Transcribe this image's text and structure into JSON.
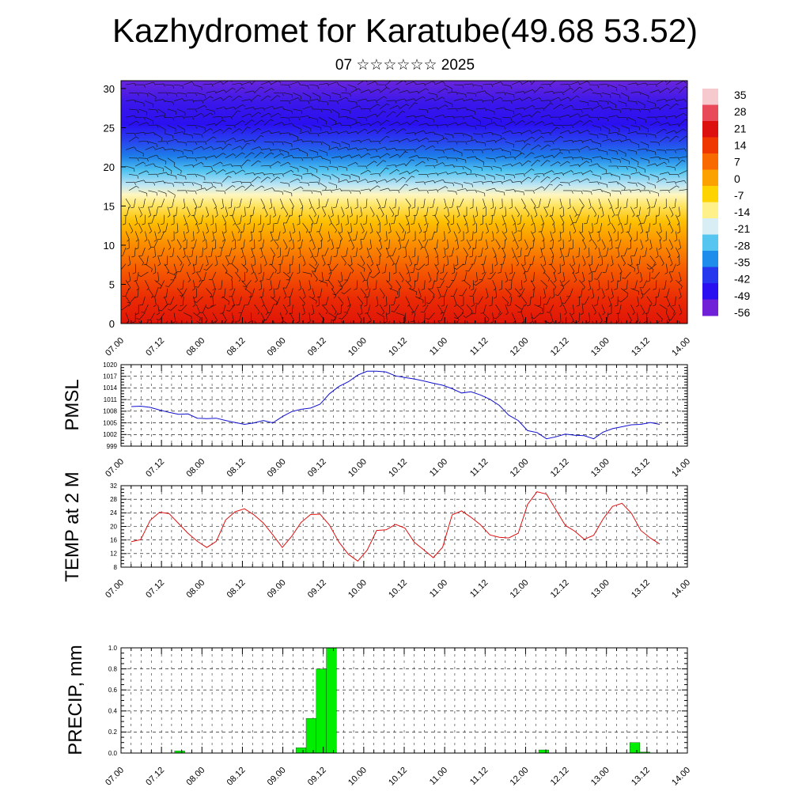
{
  "header": {
    "title": "Kazhydromet for Karatube(49.68 53.52)",
    "subtitle": "07 ☆☆☆☆☆☆ 2025"
  },
  "time_ticks": [
    "07.00",
    "07.12",
    "08.00",
    "08.12",
    "09.00",
    "09.12",
    "10.00",
    "10.12",
    "11.00",
    "11.12",
    "12.00",
    "12.12",
    "13.00",
    "13.12",
    "14.00"
  ],
  "colors": {
    "pmsl_line": "#1010d0",
    "temp_line": "#e01010",
    "precip_bar": "#00ee00",
    "grid": "#000000"
  },
  "chart_data": [
    {
      "type": "heatmap",
      "name": "temperature-wind-cross-section",
      "ylim": [
        0,
        31
      ],
      "yticks": [
        "0",
        "5",
        "10",
        "15",
        "20",
        "25",
        "30"
      ],
      "xlim": [
        0,
        14
      ],
      "colorbar_labels": [
        "35",
        "28",
        "21",
        "14",
        "7",
        "0",
        "-7",
        "-14",
        "-21",
        "-28",
        "-35",
        "-42",
        "-49",
        "-56"
      ],
      "colorbar_colors": [
        "#f6c9cf",
        "#e84a5a",
        "#dd1010",
        "#ee3800",
        "#f86a00",
        "#fba200",
        "#fdd400",
        "#fef18a",
        "#d8eef4",
        "#56c6f0",
        "#1e8cea",
        "#2638ee",
        "#2a10f0",
        "#7020d6"
      ],
      "wind_barbs": true
    },
    {
      "type": "line",
      "name": "pmsl",
      "ylabel": "PMSL",
      "ylim": [
        999,
        1020
      ],
      "yticks": [
        "999",
        "1002",
        "1005",
        "1008",
        "1011",
        "1014",
        "1017",
        "1020"
      ],
      "x_unit_per_tick": "12h",
      "x": [
        0,
        1,
        2,
        3,
        4,
        5,
        6,
        7,
        8,
        9,
        10,
        11,
        12,
        13,
        14,
        15,
        16,
        17,
        18,
        19,
        20,
        21,
        22,
        23,
        24,
        25,
        26,
        27,
        28,
        29,
        30,
        31,
        32,
        33,
        34,
        35,
        36,
        37,
        38,
        39,
        40,
        41,
        42,
        43,
        44,
        45,
        46,
        47,
        48,
        49,
        50,
        51,
        52,
        53,
        54,
        55,
        56
      ],
      "values": [
        1009.2,
        1009.3,
        1009.0,
        1008.3,
        1007.7,
        1007.2,
        1007.3,
        1006.2,
        1006.1,
        1006.2,
        1005.6,
        1005.1,
        1004.6,
        1005.0,
        1005.6,
        1005.0,
        1006.6,
        1007.9,
        1008.5,
        1008.8,
        1009.8,
        1012.5,
        1014.4,
        1015.6,
        1017.3,
        1018.3,
        1018.3,
        1018.1,
        1017.1,
        1016.7,
        1016.3,
        1015.8,
        1015.2,
        1014.7,
        1013.8,
        1012.7,
        1013.0,
        1012.2,
        1011.1,
        1009.5,
        1007.0,
        1005.6,
        1003.0,
        1002.5,
        1000.9,
        1001.4,
        1002.1,
        1001.8,
        1001.7,
        1000.9,
        1002.6,
        1003.5,
        1004.0,
        1004.5,
        1004.6,
        1005.1,
        1004.6
      ],
      "color": "#1010d0"
    },
    {
      "type": "line",
      "name": "temp-2m",
      "ylabel": "TEMP at 2 M",
      "ylim": [
        8,
        32
      ],
      "yticks": [
        "8",
        "12",
        "16",
        "20",
        "24",
        "28",
        "32"
      ],
      "x": [
        0,
        1,
        2,
        3,
        4,
        5,
        6,
        7,
        8,
        9,
        10,
        11,
        12,
        13,
        14,
        15,
        16,
        17,
        18,
        19,
        20,
        21,
        22,
        23,
        24,
        25,
        26,
        27,
        28,
        29,
        30,
        31,
        32,
        33,
        34,
        35,
        36,
        37,
        38,
        39,
        40,
        41,
        42,
        43,
        44,
        45,
        46,
        47,
        48,
        49,
        50,
        51,
        52,
        53,
        54,
        55,
        56
      ],
      "values": [
        15.5,
        16.1,
        21.8,
        24.2,
        23.8,
        20.9,
        18.0,
        15.6,
        13.8,
        15.6,
        21.9,
        24.3,
        25.2,
        23.4,
        21.0,
        17.5,
        13.8,
        17.1,
        21.2,
        23.5,
        23.6,
        20.4,
        15.4,
        11.8,
        9.8,
        13.0,
        18.8,
        19.0,
        20.6,
        19.5,
        15.3,
        13.1,
        10.8,
        13.9,
        23.4,
        24.6,
        22.7,
        20.5,
        17.5,
        16.8,
        16.6,
        18.0,
        26.5,
        30.2,
        29.5,
        24.9,
        20.3,
        18.6,
        16.2,
        17.4,
        22.2,
        25.9,
        26.8,
        23.9,
        18.8,
        16.6,
        14.8
      ],
      "color": "#e01010"
    },
    {
      "type": "bar",
      "name": "precip",
      "ylabel": "PRECIP, mm",
      "ylim": [
        0,
        1.0
      ],
      "yticks": [
        "0.0",
        "0.2",
        "0.4",
        "0.6",
        "0.8",
        "1.0"
      ],
      "x": [
        5.5,
        17.5,
        18.5,
        19.5,
        20.5,
        41.5,
        50.5,
        51.5
      ],
      "values": [
        0.02,
        0.05,
        0.33,
        0.8,
        1.0,
        0.03,
        0.1,
        0.01
      ],
      "color": "#00ee00"
    }
  ]
}
